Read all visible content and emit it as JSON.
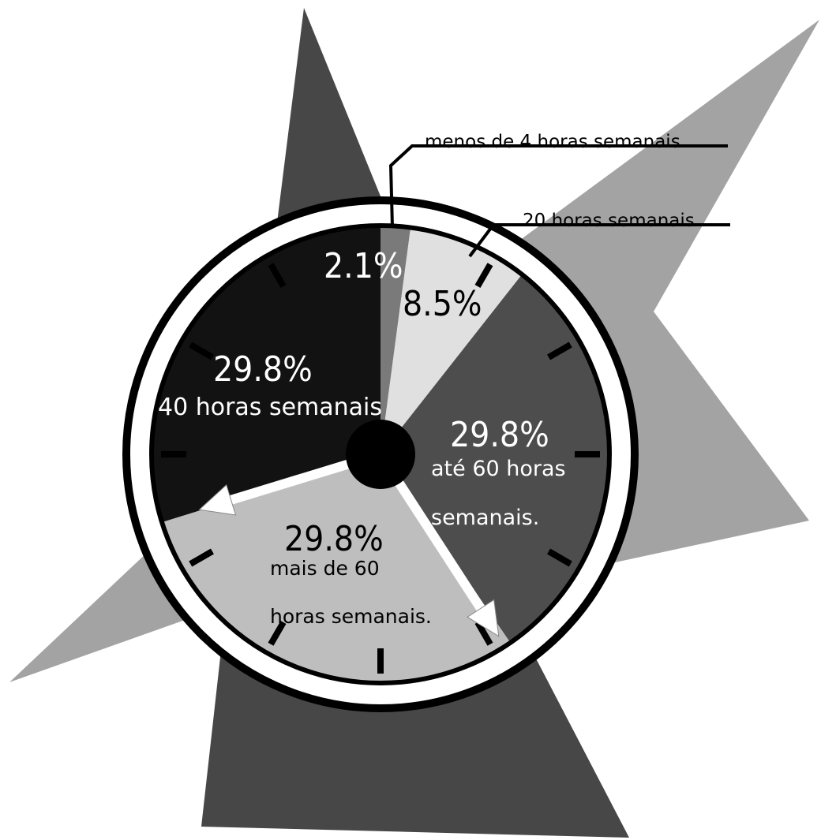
{
  "chart_data": {
    "type": "pie",
    "slices": [
      {
        "value": 2.1,
        "value_label": "2.1%",
        "label_lines": [],
        "callout": "menos de 4 horas semanais",
        "color": "#7a7a7a"
      },
      {
        "value": 8.5,
        "value_label": "8.5%",
        "label_lines": [],
        "callout": "20 horas semanais",
        "color": "#e0e0e0"
      },
      {
        "value": 29.8,
        "value_label": "29.8%",
        "label_lines": [
          "até 60 horas",
          "semanais."
        ],
        "color": "#4d4d4d"
      },
      {
        "value": 29.8,
        "value_label": "29.8%",
        "label_lines": [
          "mais de 60",
          "horas semanais."
        ],
        "color": "#bebebe"
      },
      {
        "value": 29.8,
        "value_label": "29.8%",
        "label_lines": [
          "40 horas semanais"
        ],
        "color": "#121212"
      }
    ],
    "colors": {
      "background_star_dark": "#474747",
      "background_star_light": "#a3a3a3",
      "clock_rim": "#000000",
      "clock_hub": "#000000",
      "hands": "#ffffff"
    }
  }
}
